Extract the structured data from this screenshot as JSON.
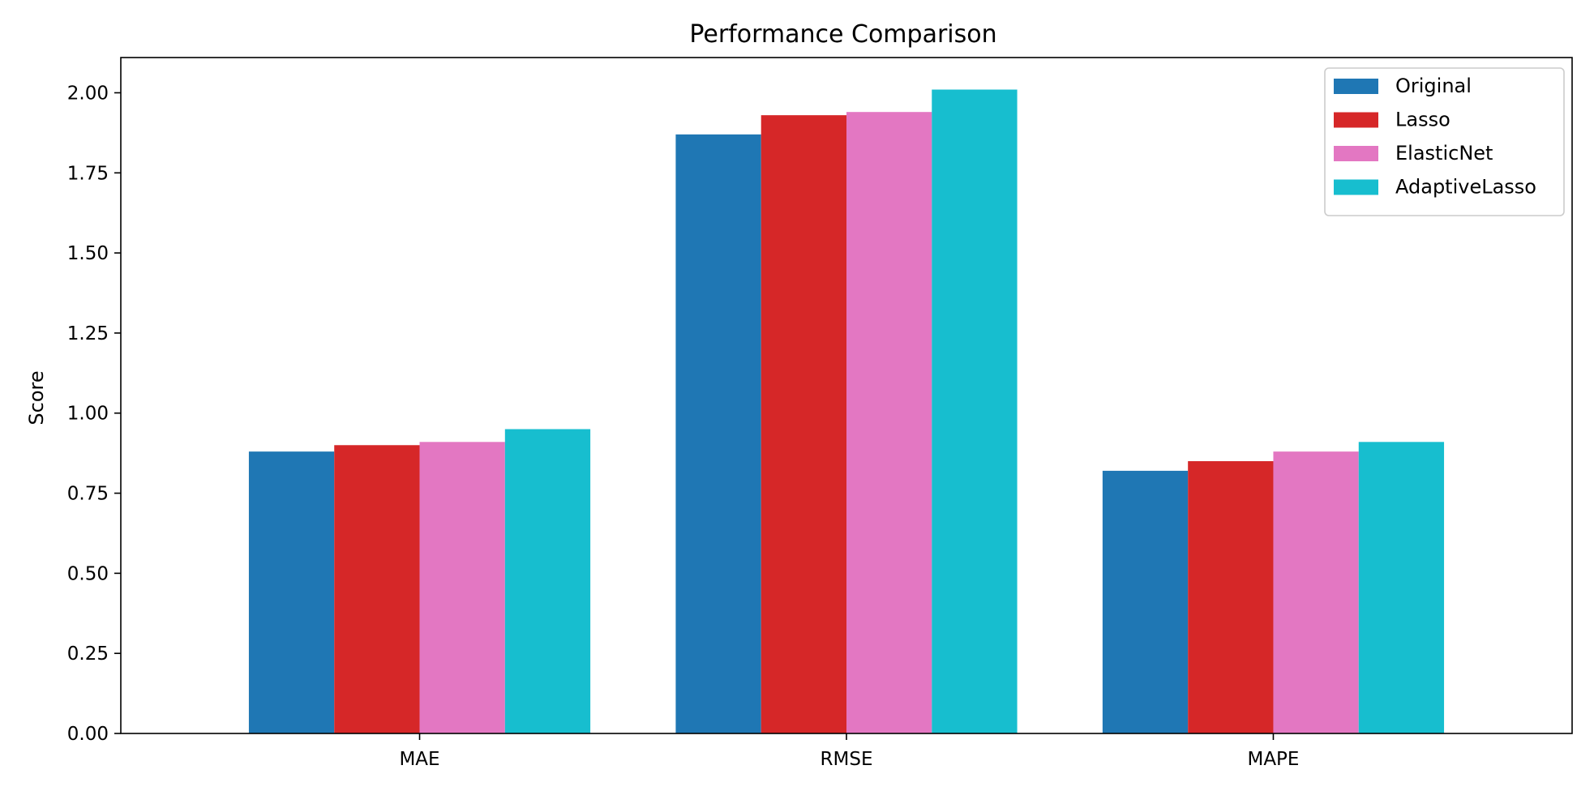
{
  "chart_data": {
    "type": "bar",
    "title": "Performance Comparison",
    "xlabel": "",
    "ylabel": "Score",
    "categories": [
      "MAE",
      "RMSE",
      "MAPE"
    ],
    "ylim": [
      0,
      2.11
    ],
    "yticks": [
      "0.00",
      "0.25",
      "0.50",
      "0.75",
      "1.00",
      "1.25",
      "1.50",
      "1.75",
      "2.00"
    ],
    "grid": false,
    "legend_position": "top-right",
    "series": [
      {
        "name": "Original",
        "color": "#1f77b4",
        "values": [
          0.88,
          1.87,
          0.82
        ]
      },
      {
        "name": "Lasso",
        "color": "#d62728",
        "values": [
          0.9,
          1.93,
          0.85
        ]
      },
      {
        "name": "ElasticNet",
        "color": "#e377c2",
        "values": [
          0.91,
          1.94,
          0.88
        ]
      },
      {
        "name": "AdaptiveLasso",
        "color": "#17becf",
        "values": [
          0.95,
          2.01,
          0.91
        ]
      }
    ]
  }
}
